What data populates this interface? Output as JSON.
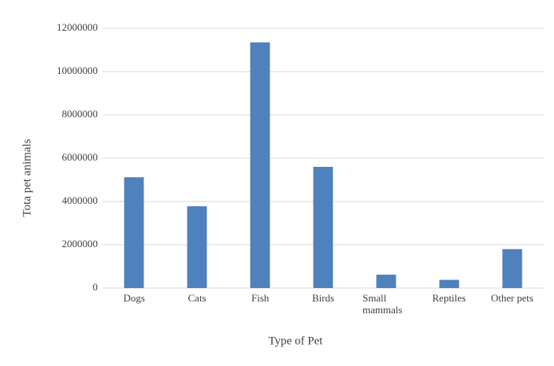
{
  "chart_data": {
    "type": "bar",
    "x_label": "Type of Pet",
    "y_label": "Tota pet animals",
    "categories": [
      "Dogs",
      "Cats",
      "Fish",
      "Birds",
      "Small mammals",
      "Reptiles",
      "Other pets"
    ],
    "values": [
      5120000,
      3780000,
      11350000,
      5600000,
      620000,
      380000,
      1800000
    ],
    "color": "#4f81bd",
    "ylim": [
      0,
      12000000
    ],
    "yticks": [
      0,
      2000000,
      4000000,
      6000000,
      8000000,
      10000000,
      12000000
    ],
    "grid": true
  }
}
